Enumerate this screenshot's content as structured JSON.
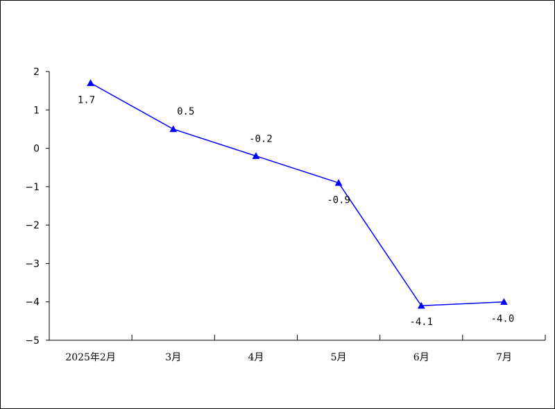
{
  "chart_data": {
    "type": "line",
    "categories": [
      "2025年2月",
      "3月",
      "4月",
      "5月",
      "6月",
      "7月"
    ],
    "values": [
      1.7,
      0.5,
      -0.2,
      -0.9,
      -4.1,
      -4.0
    ],
    "data_labels": [
      "1.7",
      "0.5",
      "-0.2",
      "-0.9",
      "-4.1",
      "-4.0"
    ],
    "ylim": [
      -5,
      2
    ],
    "yticks": [
      2,
      1,
      0,
      -1,
      -2,
      -3,
      -4,
      -5
    ],
    "ytick_labels": [
      "2",
      "1",
      "0",
      "−1",
      "−2",
      "−3",
      "−4",
      "−5"
    ],
    "marker": "triangle",
    "line_color": "#0000ff",
    "grid": false,
    "legend": "none"
  }
}
